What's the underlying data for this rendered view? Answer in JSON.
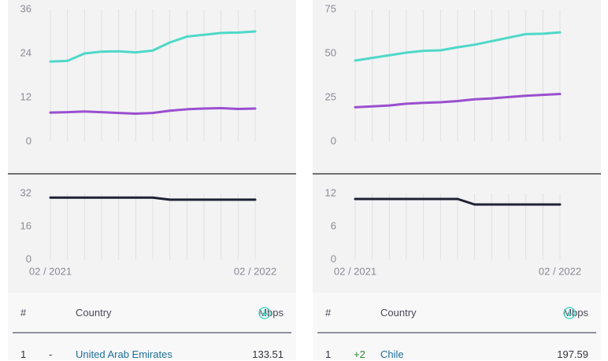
{
  "colors": {
    "download": "#4fd8c8",
    "upload": "#9a4fcf",
    "latency": "#1f2133",
    "grid": "#e0e0e3",
    "axis_text": "#8a8a95",
    "divider": "#222222",
    "link": "#1f6f96",
    "gain": "#2e8b2e"
  },
  "chart_data": [
    {
      "type": "line",
      "x": [
        "02/2021",
        "03/2021",
        "04/2021",
        "05/2021",
        "06/2021",
        "07/2021",
        "08/2021",
        "09/2021",
        "10/2021",
        "11/2021",
        "12/2021",
        "01/2022",
        "02/2022"
      ],
      "x_tick_labels": [
        "02 / 2021",
        "02 / 2022"
      ],
      "speed": {
        "yticks": [
          "36",
          "24",
          "12",
          "0"
        ],
        "ylim": [
          0,
          36
        ],
        "series": [
          {
            "role": "download",
            "values": [
              21.8,
              22.0,
              24.0,
              24.5,
              24.6,
              24.3,
              24.8,
              27.0,
              28.6,
              29.1,
              29.6,
              29.7,
              30.0
            ]
          },
          {
            "role": "upload",
            "values": [
              7.9,
              8.0,
              8.2,
              8.0,
              7.8,
              7.6,
              7.8,
              8.4,
              8.8,
              9.0,
              9.1,
              8.9,
              9.0
            ]
          }
        ]
      },
      "latency": {
        "yticks": [
          "32",
          "16",
          "0"
        ],
        "ylim": [
          0,
          32
        ],
        "values": [
          30,
          30,
          30,
          30,
          30,
          30,
          30,
          29,
          29,
          29,
          29,
          29,
          29
        ]
      }
    },
    {
      "type": "line",
      "x": [
        "02/2021",
        "03/2021",
        "04/2021",
        "05/2021",
        "06/2021",
        "07/2021",
        "08/2021",
        "09/2021",
        "10/2021",
        "11/2021",
        "12/2021",
        "01/2022",
        "02/2022"
      ],
      "x_tick_labels": [
        "02 / 2021",
        "02 / 2022"
      ],
      "speed": {
        "yticks": [
          "75",
          "50",
          "25",
          "0"
        ],
        "ylim": [
          0,
          75
        ],
        "series": [
          {
            "role": "download",
            "values": [
              46.0,
              47.5,
              49.0,
              50.5,
              51.5,
              51.8,
              53.5,
              55.0,
              57.0,
              59.0,
              61.0,
              61.2,
              62.0
            ]
          },
          {
            "role": "upload",
            "values": [
              19.5,
              20.0,
              20.5,
              21.5,
              22.0,
              22.3,
              23.0,
              24.0,
              24.5,
              25.3,
              26.0,
              26.5,
              27.0
            ]
          }
        ]
      },
      "latency": {
        "yticks": [
          "12",
          "6",
          "0"
        ],
        "ylim": [
          0,
          12
        ],
        "values": [
          11,
          11,
          11,
          11,
          11,
          11,
          11,
          10,
          10,
          10,
          10,
          10,
          10
        ]
      }
    }
  ],
  "tables": [
    {
      "headers": {
        "rank": "#",
        "country": "Country",
        "metric": "Mbps"
      },
      "rows": [
        {
          "rank": "1",
          "change": "-",
          "country": "United Arab Emirates",
          "value": "133.51"
        }
      ]
    },
    {
      "headers": {
        "rank": "#",
        "country": "Country",
        "metric": "Mbps"
      },
      "rows": [
        {
          "rank": "1",
          "change": "+2",
          "country": "Chile",
          "value": "197.59"
        }
      ]
    }
  ]
}
